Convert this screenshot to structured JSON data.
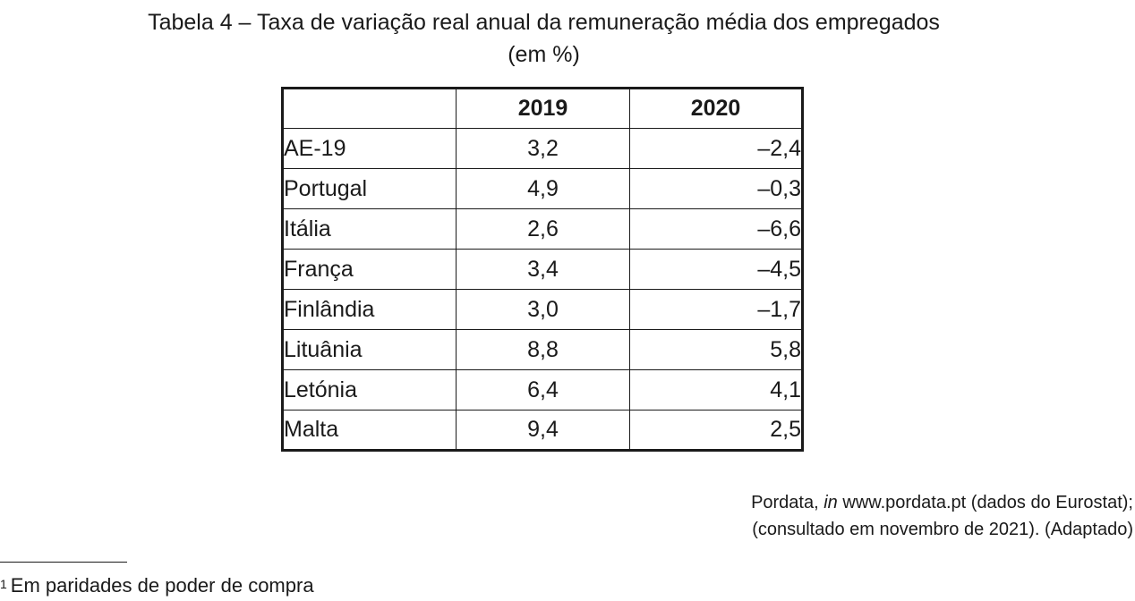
{
  "title": {
    "line1": "Tabela 4 – Taxa de variação real anual da remuneração média dos empregados",
    "line2": "(em %)"
  },
  "table": {
    "headers": [
      "",
      "2019",
      "2020"
    ],
    "rows": [
      {
        "label": "AE-19",
        "v2019": "3,2",
        "v2020": "–2,4"
      },
      {
        "label": "Portugal",
        "v2019": "4,9",
        "v2020": "–0,3"
      },
      {
        "label": "Itália",
        "v2019": "2,6",
        "v2020": "–6,6"
      },
      {
        "label": "França",
        "v2019": "3,4",
        "v2020": "–4,5"
      },
      {
        "label": "Finlândia",
        "v2019": "3,0",
        "v2020": "–1,7"
      },
      {
        "label": "Lituânia",
        "v2019": "8,8",
        "v2020": "5,8"
      },
      {
        "label": "Letónia",
        "v2019": "6,4",
        "v2020": "4,1"
      },
      {
        "label": "Malta",
        "v2019": "9,4",
        "v2020": "2,5"
      }
    ]
  },
  "source": {
    "line1_prefix": "Pordata, ",
    "line1_italic": "in",
    "line1_suffix": " www.pordata.pt (dados do Eurostat);",
    "line2": "(consultado em novembro de 2021). (Adaptado)"
  },
  "footnote": {
    "marker": "1",
    "text": "Em paridades de poder de compra"
  }
}
